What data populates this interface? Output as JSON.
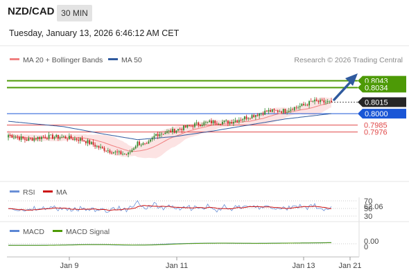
{
  "header": {
    "symbol": "NZD/CAD",
    "timeframe": "30 MIN",
    "datetime": "Tuesday, January 13, 2026 6:46:12 AM CET"
  },
  "credit": "Research © 2026 Trading Central",
  "colors": {
    "ma20": "#f08080",
    "ma50": "#2f5a9e",
    "green": "#4d9a06",
    "blue_level": "#1a56d6",
    "red_level": "#e04848",
    "rsi": "#6a8fd6",
    "rsi_ma": "#cc1111",
    "macd": "#5b86d4",
    "macd_signal": "#4d9a06",
    "candle_up": "#2e8b2e",
    "candle_down": "#cc2222",
    "band_fill": "#fbd9d9",
    "arrow": "#2f5a9e"
  },
  "chart_data": [
    {
      "type": "candlestick",
      "panel": "price",
      "legend": [
        {
          "name": "MA 20 + Bollinger Bands",
          "color": "#f08080"
        },
        {
          "name": "MA 50",
          "color": "#2f5a9e"
        }
      ],
      "ylim": [
        0.7915,
        0.8058
      ],
      "x_ticks": [
        "Jan 9",
        "Jan 11",
        "Jan 13",
        "Jan 21"
      ],
      "current_price": 0.8015,
      "levels": [
        {
          "value": 0.8043,
          "label": "0.8043",
          "kind": "resistance",
          "color": "#4d9a06"
        },
        {
          "value": 0.8034,
          "label": "0.8034",
          "kind": "resistance",
          "color": "#4d9a06"
        },
        {
          "value": 0.8,
          "label": "0.8000",
          "kind": "pivot",
          "color": "#1a56d6"
        },
        {
          "value": 0.7985,
          "label": "0.7985",
          "kind": "support",
          "color": "#e04848"
        },
        {
          "value": 0.7976,
          "label": "0.7976",
          "kind": "support",
          "color": "#e04848"
        }
      ],
      "close_anchors": [
        [
          0,
          0.7972
        ],
        [
          10,
          0.7966
        ],
        [
          20,
          0.797
        ],
        [
          30,
          0.7969
        ],
        [
          40,
          0.7966
        ],
        [
          50,
          0.7955
        ],
        [
          60,
          0.7948
        ],
        [
          65,
          0.7947
        ],
        [
          70,
          0.7962
        ],
        [
          75,
          0.7958
        ],
        [
          80,
          0.7973
        ],
        [
          90,
          0.7978
        ],
        [
          100,
          0.7985
        ],
        [
          110,
          0.7989
        ],
        [
          120,
          0.7989
        ],
        [
          130,
          0.7996
        ],
        [
          140,
          0.8003
        ],
        [
          150,
          0.8004
        ],
        [
          155,
          0.8008
        ],
        [
          160,
          0.8011
        ],
        [
          165,
          0.8016
        ],
        [
          170,
          0.8015
        ],
        [
          175,
          0.8015
        ]
      ],
      "ma50_anchors": [
        [
          0,
          0.799
        ],
        [
          30,
          0.7983
        ],
        [
          50,
          0.7974
        ],
        [
          70,
          0.7966
        ],
        [
          90,
          0.797
        ],
        [
          110,
          0.7977
        ],
        [
          130,
          0.7985
        ],
        [
          150,
          0.7993
        ],
        [
          175,
          0.8
        ]
      ]
    },
    {
      "type": "line",
      "panel": "rsi",
      "legend": [
        {
          "name": "RSI",
          "color": "#6a8fd6"
        },
        {
          "name": "MA",
          "color": "#cc1111"
        }
      ],
      "y_ticks": [
        30,
        50,
        70
      ],
      "current_value": "62.06"
    },
    {
      "type": "line",
      "panel": "macd",
      "legend": [
        {
          "name": "MACD",
          "color": "#5b86d4"
        },
        {
          "name": "MACD Signal",
          "color": "#4d9a06"
        }
      ],
      "y_ticks": [
        0
      ],
      "current_value": "0.00"
    }
  ]
}
